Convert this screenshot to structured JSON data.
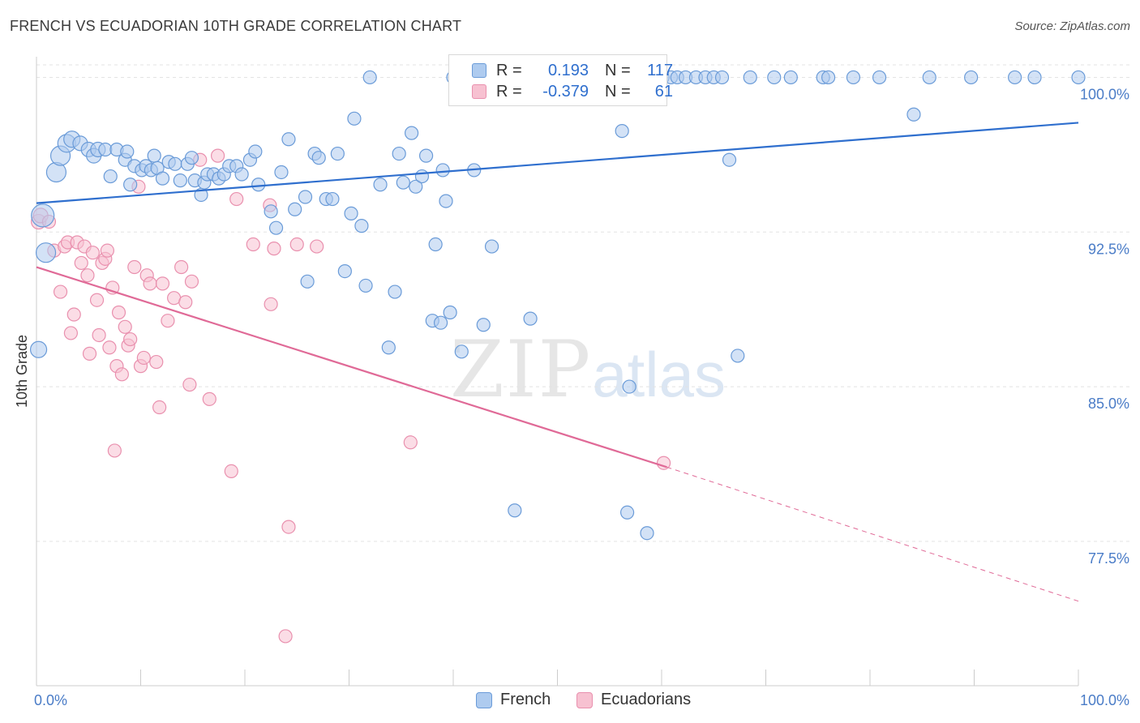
{
  "title": "FRENCH VS ECUADORIAN 10TH GRADE CORRELATION CHART",
  "source": "Source: ZipAtlas.com",
  "watermark": {
    "zip": "ZIP",
    "atlas": "atlas"
  },
  "legend": {
    "series": [
      {
        "r_label": "R =",
        "r_value": "0.193",
        "n_label": "N =",
        "n_value": "117"
      },
      {
        "r_label": "R =",
        "r_value": "-0.379",
        "n_label": "N =",
        "n_value": "61"
      }
    ]
  },
  "bottom_legend": [
    "French",
    "Ecuadorians"
  ],
  "colors": {
    "french_fill": "#aecbef",
    "french_stroke": "#6a9bd8",
    "french_line": "#2f6fce",
    "ecuador_fill": "#f7c1d1",
    "ecuador_stroke": "#e990ae",
    "ecuador_line": "#e06a97",
    "tick_text": "#4a7cc7",
    "grid": "#e3e3e3"
  },
  "chart_data": {
    "type": "scatter",
    "title": "FRENCH VS ECUADORIAN 10TH GRADE CORRELATION CHART",
    "xlabel": "",
    "ylabel": "10th Grade",
    "xlim": [
      0,
      100
    ],
    "ylim": [
      70.5,
      101.0
    ],
    "x_tick_labels": [
      "0.0%",
      "100.0%"
    ],
    "y_ticks": [
      77.5,
      85.0,
      92.5,
      100.0
    ],
    "y_tick_labels": [
      "77.5%",
      "85.0%",
      "92.5%",
      "100.0%"
    ],
    "grid": true,
    "legend_position": "top-center",
    "series": [
      {
        "name": "French",
        "r": 0.193,
        "n": 117,
        "trend": {
          "x": [
            0,
            100
          ],
          "y": [
            93.9,
            97.8
          ]
        },
        "points": [
          [
            0.2,
            86.8,
            10
          ],
          [
            0.6,
            93.3,
            14
          ],
          [
            0.9,
            91.5,
            12
          ],
          [
            1.9,
            95.4,
            12
          ],
          [
            2.3,
            96.2,
            12
          ],
          [
            2.9,
            96.8,
            11
          ],
          [
            3.4,
            97.0,
            10
          ],
          [
            4.2,
            96.8,
            9
          ],
          [
            5.0,
            96.5,
            9
          ],
          [
            5.5,
            96.2,
            9
          ],
          [
            5.9,
            96.5,
            9
          ],
          [
            6.6,
            96.5,
            8
          ],
          [
            7.1,
            95.2,
            8
          ],
          [
            7.7,
            96.5,
            8
          ],
          [
            8.5,
            96.0,
            8
          ],
          [
            8.7,
            96.4,
            8
          ],
          [
            9.0,
            94.8,
            8
          ],
          [
            9.4,
            95.7,
            8
          ],
          [
            10.1,
            95.5,
            8
          ],
          [
            10.5,
            95.7,
            8
          ],
          [
            11.0,
            95.5,
            8
          ],
          [
            11.3,
            96.2,
            8
          ],
          [
            11.6,
            95.6,
            8
          ],
          [
            12.1,
            95.1,
            8
          ],
          [
            12.7,
            95.9,
            8
          ],
          [
            13.3,
            95.8,
            8
          ],
          [
            13.8,
            95.0,
            8
          ],
          [
            14.5,
            95.8,
            8
          ],
          [
            14.9,
            96.1,
            8
          ],
          [
            15.2,
            95.0,
            8
          ],
          [
            15.8,
            94.3,
            8
          ],
          [
            16.1,
            94.9,
            8
          ],
          [
            16.4,
            95.3,
            8
          ],
          [
            17.0,
            95.3,
            8
          ],
          [
            17.5,
            95.1,
            8
          ],
          [
            18.0,
            95.3,
            8
          ],
          [
            18.5,
            95.7,
            8
          ],
          [
            19.2,
            95.7,
            8
          ],
          [
            19.7,
            95.3,
            8
          ],
          [
            20.5,
            96.0,
            8
          ],
          [
            21.0,
            96.4,
            8
          ],
          [
            21.3,
            94.8,
            8
          ],
          [
            22.5,
            93.5,
            8
          ],
          [
            23.0,
            92.7,
            8
          ],
          [
            23.5,
            95.4,
            8
          ],
          [
            24.2,
            97.0,
            8
          ],
          [
            24.8,
            93.6,
            8
          ],
          [
            25.8,
            94.2,
            8
          ],
          [
            26.0,
            90.1,
            8
          ],
          [
            26.7,
            96.3,
            8
          ],
          [
            27.1,
            96.1,
            8
          ],
          [
            27.8,
            94.1,
            8
          ],
          [
            28.4,
            94.1,
            8
          ],
          [
            28.9,
            96.3,
            8
          ],
          [
            29.6,
            90.6,
            8
          ],
          [
            30.2,
            93.4,
            8
          ],
          [
            30.5,
            98.0,
            8
          ],
          [
            31.2,
            92.8,
            8
          ],
          [
            31.6,
            89.9,
            8
          ],
          [
            32.0,
            100.0,
            8
          ],
          [
            33.0,
            94.8,
            8
          ],
          [
            33.8,
            86.9,
            8
          ],
          [
            34.4,
            89.6,
            8
          ],
          [
            34.8,
            96.3,
            8
          ],
          [
            35.2,
            94.9,
            8
          ],
          [
            36.0,
            97.3,
            8
          ],
          [
            36.4,
            94.7,
            8
          ],
          [
            37.0,
            95.2,
            8
          ],
          [
            37.4,
            96.2,
            8
          ],
          [
            38.0,
            88.2,
            8
          ],
          [
            38.3,
            91.9,
            8
          ],
          [
            38.8,
            88.1,
            8
          ],
          [
            39.0,
            95.5,
            8
          ],
          [
            39.3,
            94.0,
            8
          ],
          [
            39.7,
            88.6,
            8
          ],
          [
            40.0,
            100.0,
            8
          ],
          [
            40.8,
            86.7,
            8
          ],
          [
            41.3,
            100.0,
            8
          ],
          [
            41.7,
            100.0,
            8
          ],
          [
            42.0,
            95.5,
            8
          ],
          [
            42.6,
            99.6,
            8
          ],
          [
            42.9,
            88.0,
            8
          ],
          [
            43.7,
            91.8,
            8
          ],
          [
            44.3,
            100.0,
            8
          ],
          [
            45.1,
            100.0,
            8
          ],
          [
            45.9,
            79.0,
            8
          ],
          [
            46.5,
            100.0,
            8
          ],
          [
            47.4,
            88.3,
            8
          ],
          [
            48.2,
            100.0,
            8
          ],
          [
            49.1,
            100.0,
            8
          ],
          [
            50.0,
            100.0,
            8
          ],
          [
            51.0,
            100.0,
            8
          ],
          [
            52.0,
            100.0,
            8
          ],
          [
            52.8,
            100.0,
            8
          ],
          [
            53.5,
            100.0,
            8
          ],
          [
            55.1,
            100.0,
            8
          ],
          [
            56.2,
            97.4,
            8
          ],
          [
            56.9,
            85.0,
            8
          ],
          [
            56.7,
            78.9,
            8
          ],
          [
            57.5,
            100.0,
            8
          ],
          [
            58.6,
            77.9,
            8
          ],
          [
            60.1,
            100.0,
            8
          ],
          [
            60.9,
            100.0,
            8
          ],
          [
            61.5,
            100.0,
            8
          ],
          [
            62.3,
            100.0,
            8
          ],
          [
            63.3,
            100.0,
            8
          ],
          [
            64.2,
            100.0,
            8
          ],
          [
            65.0,
            100.0,
            8
          ],
          [
            65.8,
            100.0,
            8
          ],
          [
            66.5,
            96.0,
            8
          ],
          [
            67.3,
            86.5,
            8
          ],
          [
            68.5,
            100.0,
            8
          ],
          [
            70.8,
            100.0,
            8
          ],
          [
            72.4,
            100.0,
            8
          ],
          [
            75.5,
            100.0,
            8
          ],
          [
            76.0,
            100.0,
            8
          ],
          [
            78.4,
            100.0,
            8
          ],
          [
            80.9,
            100.0,
            8
          ],
          [
            84.2,
            98.2,
            8
          ],
          [
            85.7,
            100.0,
            8
          ],
          [
            89.7,
            100.0,
            8
          ],
          [
            93.9,
            100.0,
            8
          ],
          [
            95.8,
            100.0,
            8
          ],
          [
            100.0,
            100.0,
            8
          ]
        ]
      },
      {
        "name": "Ecuadorians",
        "r": -0.379,
        "n": 61,
        "trend": {
          "x": [
            0,
            60.5
          ],
          "y": [
            90.8,
            81.1
          ]
        },
        "trend_extension": {
          "x": [
            60.5,
            100
          ],
          "y": [
            81.1,
            74.6
          ]
        },
        "points": [
          [
            0.2,
            93.0,
            9
          ],
          [
            0.4,
            93.3,
            9
          ],
          [
            1.2,
            93.0,
            8
          ],
          [
            1.7,
            91.6,
            8
          ],
          [
            2.3,
            89.6,
            8
          ],
          [
            2.7,
            91.8,
            8
          ],
          [
            3.0,
            92.0,
            8
          ],
          [
            3.3,
            87.6,
            8
          ],
          [
            3.6,
            88.5,
            8
          ],
          [
            3.9,
            92.0,
            8
          ],
          [
            4.3,
            91.0,
            8
          ],
          [
            4.6,
            91.8,
            8
          ],
          [
            4.9,
            90.4,
            8
          ],
          [
            5.1,
            86.6,
            8
          ],
          [
            5.4,
            91.5,
            8
          ],
          [
            5.8,
            89.2,
            8
          ],
          [
            6.0,
            87.5,
            8
          ],
          [
            6.3,
            91.0,
            8
          ],
          [
            6.6,
            91.2,
            8
          ],
          [
            6.8,
            91.6,
            8
          ],
          [
            7.0,
            86.9,
            8
          ],
          [
            7.3,
            89.8,
            8
          ],
          [
            7.5,
            81.9,
            8
          ],
          [
            7.7,
            86.0,
            8
          ],
          [
            7.9,
            88.6,
            8
          ],
          [
            8.2,
            85.6,
            8
          ],
          [
            8.5,
            87.9,
            8
          ],
          [
            8.8,
            87.0,
            8
          ],
          [
            9.0,
            87.3,
            8
          ],
          [
            9.4,
            90.8,
            8
          ],
          [
            9.8,
            94.7,
            8
          ],
          [
            10.0,
            86.0,
            8
          ],
          [
            10.3,
            86.4,
            8
          ],
          [
            10.6,
            90.4,
            8
          ],
          [
            10.9,
            90.0,
            8
          ],
          [
            11.5,
            86.2,
            8
          ],
          [
            11.8,
            84.0,
            8
          ],
          [
            12.1,
            90.0,
            8
          ],
          [
            12.6,
            88.2,
            8
          ],
          [
            13.2,
            89.3,
            8
          ],
          [
            13.9,
            90.8,
            8
          ],
          [
            14.3,
            89.1,
            8
          ],
          [
            14.7,
            85.1,
            8
          ],
          [
            14.9,
            90.1,
            8
          ],
          [
            15.7,
            96.0,
            8
          ],
          [
            16.6,
            84.4,
            8
          ],
          [
            17.4,
            96.2,
            8
          ],
          [
            18.7,
            80.9,
            8
          ],
          [
            19.2,
            94.1,
            8
          ],
          [
            20.8,
            91.9,
            8
          ],
          [
            22.4,
            93.8,
            8
          ],
          [
            22.5,
            89.0,
            8
          ],
          [
            22.8,
            91.7,
            8
          ],
          [
            23.9,
            72.9,
            8
          ],
          [
            24.2,
            78.2,
            8
          ],
          [
            25.0,
            91.9,
            8
          ],
          [
            26.9,
            91.8,
            8
          ],
          [
            35.9,
            82.3,
            8
          ],
          [
            60.2,
            81.3,
            8
          ],
          [
            5.7,
            80.0,
            0
          ],
          [
            13.0,
            80.0,
            0
          ]
        ]
      }
    ]
  }
}
